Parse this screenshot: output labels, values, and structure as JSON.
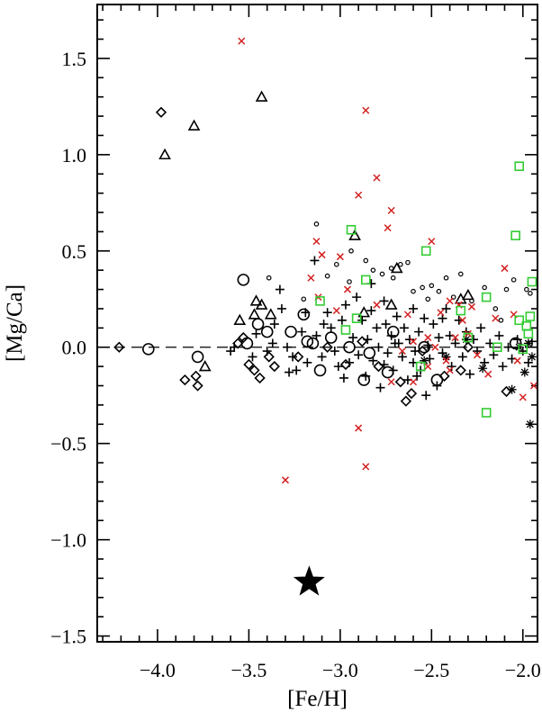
{
  "chart_data": {
    "type": "scatter",
    "xlabel": "[Fe/H]",
    "ylabel": "[Mg/Ca]",
    "xlim": [
      -4.33,
      -1.92
    ],
    "ylim": [
      -1.53,
      1.78
    ],
    "xticks": [
      -4.0,
      -3.5,
      -3.0,
      -2.5,
      -2.0
    ],
    "xtick_labels": [
      "−4.0",
      "−3.5",
      "−3.0",
      "−2.5",
      "−2.0"
    ],
    "yticks": [
      -1.5,
      -1.0,
      -0.5,
      0.0,
      0.5,
      1.0,
      1.5
    ],
    "ytick_labels": [
      "−1.5",
      "−1.0",
      "−0.5",
      "0.0",
      "0.5",
      "1.0",
      "1.5"
    ],
    "reference_line_y": 0.0,
    "grid": false,
    "colors": {
      "black": "#000000",
      "red": "#d42020",
      "green": "#33cc33"
    },
    "series": [
      {
        "marker": "diamond",
        "color": "#000000",
        "points": [
          [
            -4.21,
            0.0
          ],
          [
            -3.98,
            1.22
          ],
          [
            -3.85,
            -0.17
          ],
          [
            -3.79,
            -0.15
          ],
          [
            -3.78,
            -0.2
          ],
          [
            -3.56,
            0.02
          ],
          [
            -3.53,
            0.05
          ],
          [
            -3.5,
            -0.09
          ],
          [
            -3.47,
            -0.12
          ],
          [
            -3.44,
            -0.16
          ],
          [
            -3.39,
            -0.05
          ],
          [
            -3.36,
            -0.1
          ],
          [
            -3.23,
            -0.05
          ],
          [
            -3.07,
            0.0
          ],
          [
            -2.97,
            -0.09
          ],
          [
            -2.88,
            0.03
          ],
          [
            -2.79,
            -0.1
          ],
          [
            -2.67,
            -0.18
          ],
          [
            -2.64,
            -0.28
          ],
          [
            -2.61,
            -0.24
          ],
          [
            -2.55,
            -0.02
          ],
          [
            -2.43,
            -0.15
          ],
          [
            -2.34,
            -0.12
          ],
          [
            -2.3,
            0.0
          ],
          [
            -2.09,
            -0.23
          ]
        ]
      },
      {
        "marker": "circle-open",
        "color": "#000000",
        "points": [
          [
            -4.05,
            -0.01
          ],
          [
            -3.78,
            -0.05
          ],
          [
            -3.53,
            0.35
          ],
          [
            -3.51,
            0.02
          ],
          [
            -3.45,
            0.12
          ],
          [
            -3.4,
            0.08
          ],
          [
            -3.27,
            0.08
          ],
          [
            -3.2,
            0.17
          ],
          [
            -3.18,
            0.03
          ],
          [
            -3.15,
            0.02
          ],
          [
            -3.11,
            -0.12
          ],
          [
            -3.05,
            0.05
          ],
          [
            -2.95,
            0.0
          ],
          [
            -2.87,
            -0.17
          ],
          [
            -2.84,
            -0.03
          ],
          [
            -2.74,
            -0.13
          ],
          [
            -2.71,
            0.08
          ],
          [
            -2.54,
            0.0
          ],
          [
            -2.47,
            -0.17
          ],
          [
            -2.04,
            0.02
          ]
        ]
      },
      {
        "marker": "dot",
        "color": "#000000",
        "points": [
          [
            -3.39,
            0.36
          ],
          [
            -3.13,
            0.64
          ],
          [
            -3.07,
            0.37
          ],
          [
            -3.02,
            0.43
          ],
          [
            -2.94,
            0.5
          ],
          [
            -2.86,
            0.45
          ],
          [
            -2.82,
            0.4
          ],
          [
            -2.77,
            0.38
          ],
          [
            -2.71,
            0.36
          ],
          [
            -2.67,
            0.43
          ],
          [
            -2.6,
            0.29
          ],
          [
            -2.55,
            0.31
          ],
          [
            -2.5,
            0.32
          ],
          [
            -2.46,
            0.29
          ],
          [
            -2.42,
            0.36
          ],
          [
            -2.34,
            0.38
          ],
          [
            -2.28,
            0.24
          ],
          [
            -2.21,
            0.31
          ],
          [
            -2.15,
            0.2
          ],
          [
            -2.09,
            0.3
          ],
          [
            -2.05,
            0.35
          ],
          [
            -1.98,
            0.3
          ],
          [
            -1.96,
            0.28
          ],
          [
            -2.12,
            0.14
          ],
          [
            -2.63,
            0.44
          ],
          [
            -2.38,
            0.26
          ],
          [
            -2.95,
            0.34
          ],
          [
            -3.2,
            0.25
          ],
          [
            -2.72,
            0.41
          ],
          [
            -2.52,
            0.25
          ]
        ]
      },
      {
        "marker": "triangle-open",
        "color": "#000000",
        "points": [
          [
            -3.96,
            1.0
          ],
          [
            -3.8,
            1.15
          ],
          [
            -3.43,
            1.3
          ],
          [
            -3.74,
            -0.1
          ],
          [
            -3.55,
            0.14
          ],
          [
            -3.47,
            0.17
          ],
          [
            -3.43,
            0.22
          ],
          [
            -3.38,
            0.17
          ],
          [
            -2.92,
            0.58
          ],
          [
            -2.69,
            0.41
          ],
          [
            -2.72,
            0.22
          ],
          [
            -2.34,
            0.25
          ],
          [
            -2.3,
            0.27
          ],
          [
            -2.87,
            0.18
          ],
          [
            -3.46,
            0.24
          ]
        ]
      },
      {
        "marker": "plus",
        "color": "#000000",
        "points": [
          [
            -3.46,
            0.07
          ],
          [
            -3.4,
            -0.02
          ],
          [
            -3.36,
            0.12
          ],
          [
            -3.33,
            0.3
          ],
          [
            -3.32,
            0.2
          ],
          [
            -3.29,
            0.0
          ],
          [
            -3.26,
            -0.05
          ],
          [
            -3.24,
            -0.12
          ],
          [
            -3.21,
            0.08
          ],
          [
            -3.19,
            0.18
          ],
          [
            -3.18,
            -0.08
          ],
          [
            -3.14,
            0.45
          ],
          [
            -3.13,
            0.06
          ],
          [
            -3.1,
            -0.05
          ],
          [
            -3.07,
            0.18
          ],
          [
            -3.05,
            0.1
          ],
          [
            -3.03,
            -0.02
          ],
          [
            -3.01,
            -0.1
          ],
          [
            -2.99,
            0.14
          ],
          [
            -2.97,
            0.22
          ],
          [
            -2.95,
            -0.08
          ],
          [
            -2.93,
            0.05
          ],
          [
            -2.91,
            0.26
          ],
          [
            -2.9,
            -0.04
          ],
          [
            -2.88,
            0.14
          ],
          [
            -2.86,
            -0.15
          ],
          [
            -2.85,
            0.04
          ],
          [
            -2.83,
            0.19
          ],
          [
            -2.82,
            -0.07
          ],
          [
            -2.8,
            0.1
          ],
          [
            -2.79,
            0.0
          ],
          [
            -2.78,
            -0.21
          ],
          [
            -2.76,
            0.24
          ],
          [
            -2.75,
            0.12
          ],
          [
            -2.74,
            -0.03
          ],
          [
            -2.72,
            0.06
          ],
          [
            -2.71,
            -0.12
          ],
          [
            -2.69,
            0.16
          ],
          [
            -2.68,
            0.02
          ],
          [
            -2.66,
            -0.05
          ],
          [
            -2.65,
            0.1
          ],
          [
            -2.63,
            -0.17
          ],
          [
            -2.62,
            0.04
          ],
          [
            -2.6,
            0.2
          ],
          [
            -2.59,
            -0.02
          ],
          [
            -2.57,
            0.08
          ],
          [
            -2.56,
            -0.12
          ],
          [
            -2.54,
            0.15
          ],
          [
            -2.52,
            0.01
          ],
          [
            -2.51,
            -0.06
          ],
          [
            -2.49,
            0.12
          ],
          [
            -2.47,
            -0.2
          ],
          [
            -2.46,
            0.05
          ],
          [
            -2.44,
            -0.03
          ],
          [
            -2.42,
            0.2
          ],
          [
            -2.4,
            0.06
          ],
          [
            -2.39,
            -0.1
          ],
          [
            -2.37,
            0.02
          ],
          [
            -2.35,
            0.14
          ],
          [
            -2.33,
            -0.05
          ],
          [
            -2.31,
            0.08
          ],
          [
            -2.29,
            -0.14
          ],
          [
            -2.27,
            0.04
          ],
          [
            -2.25,
            -0.02
          ],
          [
            -2.23,
            0.1
          ],
          [
            -2.21,
            -0.08
          ],
          [
            -2.18,
            0.02
          ],
          [
            -2.16,
            -0.04
          ],
          [
            -2.13,
            0.06
          ],
          [
            -2.11,
            -0.1
          ],
          [
            -2.08,
            0.0
          ],
          [
            -2.06,
            -0.06
          ],
          [
            -2.03,
            0.04
          ],
          [
            -2.0,
            -0.02
          ],
          [
            -1.97,
            -0.08
          ],
          [
            -1.95,
            0.03
          ],
          [
            -3.48,
            -0.05
          ],
          [
            -3.58,
            0.0
          ],
          [
            -3.6,
            -0.02
          ],
          [
            -3.28,
            -0.13
          ],
          [
            -2.98,
            -0.16
          ],
          [
            -2.76,
            -0.09
          ],
          [
            -2.58,
            -0.15
          ],
          [
            -2.53,
            -0.25
          ],
          [
            -2.83,
            0.33
          ],
          [
            -2.7,
            0.02
          ],
          [
            -2.6,
            -0.08
          ],
          [
            -3.37,
            0.02
          ],
          [
            -3.09,
            0.12
          ],
          [
            -2.44,
            0.15
          ]
        ]
      },
      {
        "marker": "asterisk",
        "color": "#000000",
        "points": [
          [
            -2.54,
            -0.07
          ],
          [
            -2.42,
            -0.05
          ],
          [
            -2.31,
            0.04
          ],
          [
            -2.22,
            -0.11
          ],
          [
            -2.06,
            -0.22
          ],
          [
            -1.95,
            -0.05
          ],
          [
            -1.96,
            -0.4
          ],
          [
            -1.99,
            -0.13
          ],
          [
            -2.02,
            0.0
          ],
          [
            -1.97,
            0.02
          ]
        ]
      },
      {
        "marker": "x",
        "color": "#d42020",
        "points": [
          [
            -3.54,
            1.59
          ],
          [
            -2.86,
            1.23
          ],
          [
            -2.8,
            0.88
          ],
          [
            -2.72,
            0.71
          ],
          [
            -2.9,
            0.79
          ],
          [
            -2.74,
            0.62
          ],
          [
            -2.5,
            0.55
          ],
          [
            -3.13,
            0.55
          ],
          [
            -3.1,
            0.48
          ],
          [
            -3.0,
            0.47
          ],
          [
            -3.16,
            0.36
          ],
          [
            -2.96,
            0.3
          ],
          [
            -3.12,
            0.26
          ],
          [
            -3.02,
            0.19
          ],
          [
            -2.8,
            0.22
          ],
          [
            -2.63,
            0.17
          ],
          [
            -2.45,
            0.18
          ],
          [
            -2.4,
            0.24
          ],
          [
            -2.35,
            0.22
          ],
          [
            -2.3,
            0.07
          ],
          [
            -2.28,
            0.21
          ],
          [
            -2.15,
            0.15
          ],
          [
            -2.1,
            0.41
          ],
          [
            -2.05,
            0.17
          ],
          [
            -2.66,
            -0.02
          ],
          [
            -2.6,
            0.03
          ],
          [
            -2.52,
            -0.1
          ],
          [
            -2.48,
            0.0
          ],
          [
            -2.42,
            -0.07
          ],
          [
            -2.4,
            -0.12
          ],
          [
            -2.37,
            0.05
          ],
          [
            -2.25,
            -0.04
          ],
          [
            -2.19,
            -0.14
          ],
          [
            -2.0,
            -0.26
          ],
          [
            -1.94,
            -0.2
          ],
          [
            -2.03,
            -0.07
          ],
          [
            -2.9,
            -0.42
          ],
          [
            -2.86,
            -0.62
          ],
          [
            -3.3,
            -0.69
          ],
          [
            -2.72,
            -0.18
          ],
          [
            -2.6,
            -0.18
          ],
          [
            -2.52,
            0.05
          ],
          [
            -2.33,
            0.14
          ]
        ]
      },
      {
        "marker": "square-open",
        "color": "#33cc33",
        "points": [
          [
            -2.02,
            0.94
          ],
          [
            -2.04,
            0.58
          ],
          [
            -2.94,
            0.61
          ],
          [
            -2.86,
            0.35
          ],
          [
            -2.53,
            0.5
          ],
          [
            -2.2,
            0.26
          ],
          [
            -2.34,
            0.19
          ],
          [
            -3.11,
            0.24
          ],
          [
            -2.91,
            0.15
          ],
          [
            -2.56,
            -0.1
          ],
          [
            -2.3,
            0.05
          ],
          [
            -2.14,
            0.0
          ],
          [
            -2.02,
            0.14
          ],
          [
            -1.96,
            0.16
          ],
          [
            -1.98,
            0.11
          ],
          [
            -1.95,
            0.34
          ],
          [
            -1.97,
            0.07
          ],
          [
            -2.0,
            -0.01
          ],
          [
            -2.2,
            -0.34
          ],
          [
            -2.97,
            0.09
          ]
        ]
      },
      {
        "marker": "star-filled",
        "color": "#000000",
        "points": [
          [
            -3.17,
            -1.22
          ]
        ]
      }
    ]
  }
}
